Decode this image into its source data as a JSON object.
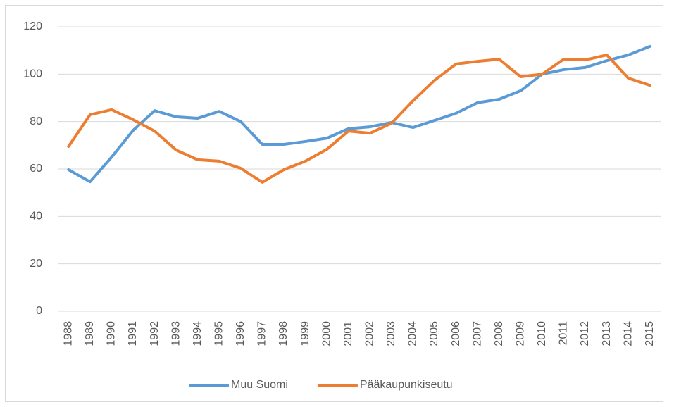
{
  "chart_data": {
    "type": "line",
    "categories": [
      "1988",
      "1989",
      "1990",
      "1991",
      "1992",
      "1993",
      "1994",
      "1995",
      "1996",
      "1997",
      "1998",
      "1999",
      "2000",
      "2001",
      "2002",
      "2003",
      "2004",
      "2005",
      "2006",
      "2007",
      "2008",
      "2009",
      "2010",
      "2011",
      "2012",
      "2013",
      "2014",
      "2015"
    ],
    "series": [
      {
        "name": "Muu Suomi",
        "color": "#5b9bd5",
        "values": [
          59.7,
          54.6,
          65,
          76.3,
          84.6,
          82,
          81.4,
          84.3,
          80,
          70.4,
          70.4,
          71.6,
          73,
          77,
          77.8,
          79.6,
          77.5,
          80.5,
          83.5,
          88,
          89.4,
          93,
          100,
          101.9,
          102.8,
          105.7,
          108.1,
          111.7
        ]
      },
      {
        "name": "Pääkaupunkiseutu",
        "color": "#ed7d31",
        "values": [
          69.5,
          82.9,
          85,
          80.8,
          76,
          68,
          63.9,
          63.3,
          60.3,
          54.4,
          59.7,
          63.3,
          68.3,
          76,
          75.1,
          79.3,
          88.8,
          97.4,
          104.3,
          105.4,
          106.3,
          98.9,
          100,
          106.3,
          106,
          108.1,
          98.3,
          95.3
        ]
      }
    ],
    "ylim": [
      0,
      120
    ],
    "yticks": [
      0,
      20,
      40,
      60,
      80,
      100,
      120
    ],
    "grid": true,
    "legend": "bottom"
  }
}
